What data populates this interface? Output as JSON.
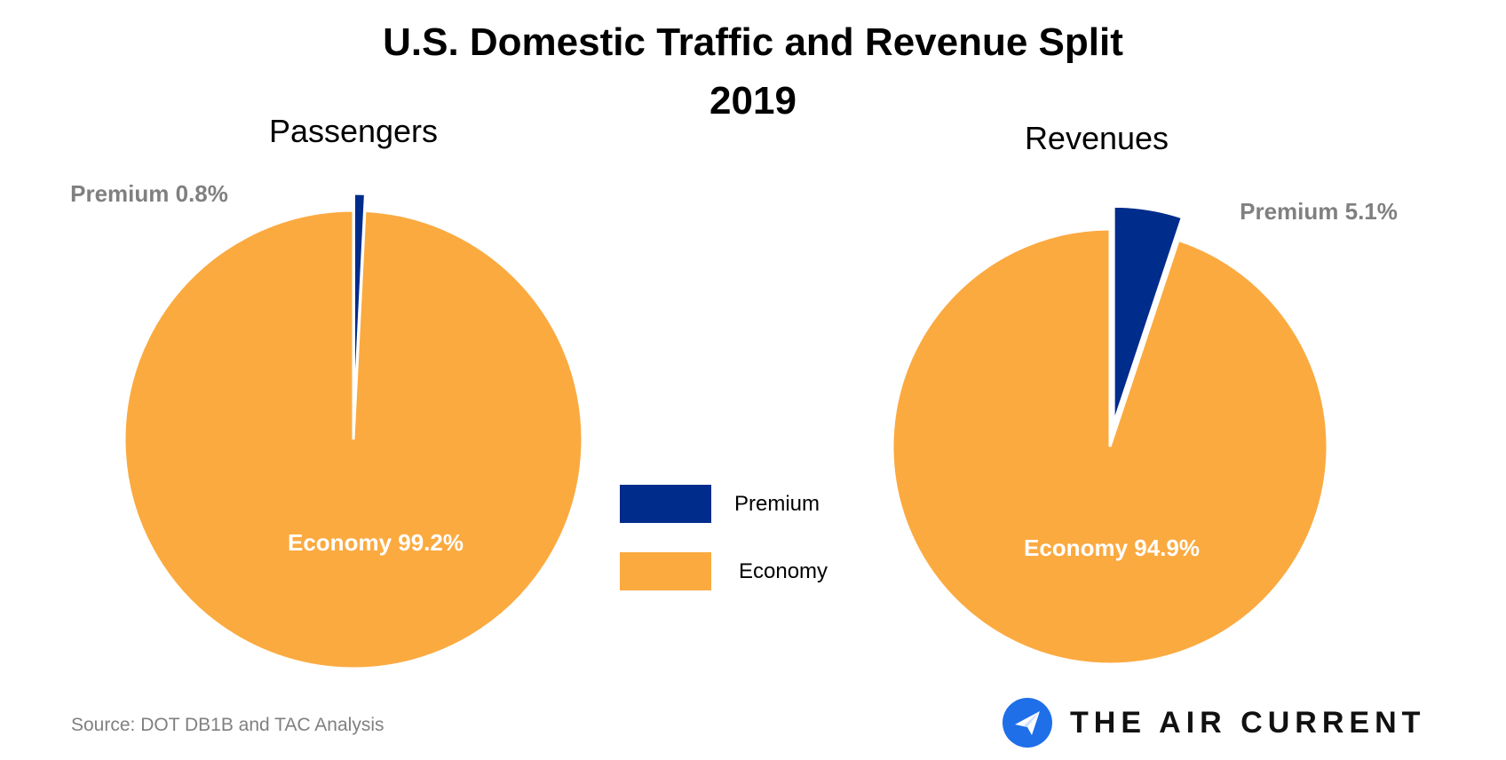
{
  "chart_data": [
    {
      "type": "pie",
      "title": "U.S. Domestic Traffic and Revenue Split",
      "subtitle": "2019",
      "chart_title": "Passengers",
      "slices": [
        {
          "name": "Premium",
          "value": 0.8,
          "label": "Premium 0.8%",
          "color": "#002C8C",
          "exploded": true
        },
        {
          "name": "Economy",
          "value": 99.2,
          "label": "Economy 99.2%",
          "color": "#FBAA40",
          "exploded": false
        }
      ]
    },
    {
      "type": "pie",
      "chart_title": "Revenues",
      "slices": [
        {
          "name": "Premium",
          "value": 5.1,
          "label": "Premium 5.1%",
          "color": "#002C8C",
          "exploded": true
        },
        {
          "name": "Economy",
          "value": 94.9,
          "label": "Economy 94.9%",
          "color": "#FBAA40",
          "exploded": false
        }
      ]
    }
  ],
  "page": {
    "title_line1": "U.S. Domestic Traffic and Revenue Split",
    "title_line2": "2019",
    "legend": [
      {
        "label": "Premium",
        "color": "#002C8C"
      },
      {
        "label": "Economy",
        "color": "#FBAA40"
      }
    ],
    "source": "Source: DOT DB1B and TAC Analysis",
    "brand": {
      "name": "THE AIR CURRENT",
      "icon": "paper-plane-icon",
      "icon_color": "#1E6FE8"
    },
    "label_colors": {
      "outside": "#808080",
      "inside": "#ffffff"
    }
  }
}
